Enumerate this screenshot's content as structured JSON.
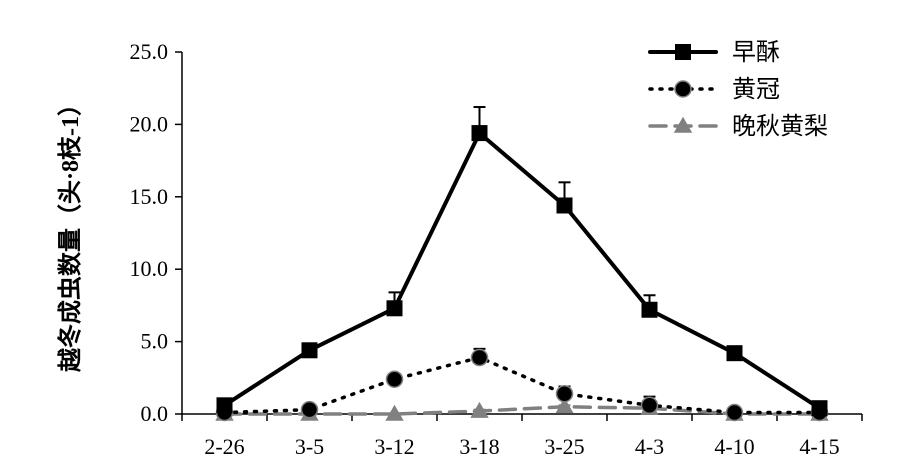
{
  "chart_data": {
    "type": "line",
    "categories": [
      "2-26",
      "3-5",
      "3-12",
      "3-18",
      "3-25",
      "4-3",
      "4-10",
      "4-15"
    ],
    "ylabel": "越冬成虫数量（头·8枝-1）",
    "ylim": [
      0,
      25
    ],
    "yticks": [
      "0.0",
      "5.0",
      "10.0",
      "15.0",
      "20.0",
      "25.0"
    ],
    "grid": false,
    "legend_position": "top-right",
    "series": [
      {
        "name": "早酥",
        "values": [
          0.6,
          4.4,
          7.3,
          19.4,
          14.4,
          7.2,
          4.2,
          0.4
        ],
        "errors": [
          0.3,
          0.4,
          1.1,
          1.8,
          1.6,
          1.0,
          0.4,
          0.3
        ],
        "color": "#000000",
        "line": "solid",
        "marker": "square"
      },
      {
        "name": "黄冠",
        "values": [
          0.1,
          0.3,
          2.4,
          3.9,
          1.4,
          0.6,
          0.1,
          0.1
        ],
        "errors": [
          0.1,
          0.2,
          0.3,
          0.6,
          0.5,
          0.6,
          0.1,
          0.1
        ],
        "color": "#000000",
        "line": "dotted",
        "marker": "circle"
      },
      {
        "name": "晚秋黄梨",
        "values": [
          0.0,
          0.0,
          0.0,
          0.2,
          0.5,
          0.4,
          0.0,
          0.0
        ],
        "errors": [
          0.0,
          0.0,
          0.0,
          0.1,
          0.1,
          0.1,
          0.0,
          0.0
        ],
        "color": "#808080",
        "line": "dashed",
        "marker": "triangle"
      }
    ]
  }
}
